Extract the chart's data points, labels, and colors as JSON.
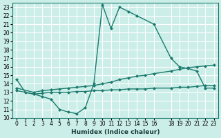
{
  "xlabel": "Humidex (Indice chaleur)",
  "ylabel": "",
  "bg_color": "#cceee8",
  "grid_color": "#ffffff",
  "line_color": "#1a7a6e",
  "x_ticks": [
    0,
    1,
    2,
    3,
    4,
    5,
    6,
    7,
    8,
    9,
    10,
    11,
    12,
    13,
    14,
    15,
    16,
    18,
    19,
    20,
    21,
    22,
    23
  ],
  "x_tick_labels": [
    "0",
    "1",
    "2",
    "3",
    "4",
    "5",
    "6",
    "7",
    "8",
    "9",
    "10",
    "11",
    "12",
    "13",
    "14",
    "15",
    "16",
    "18",
    "19",
    "20",
    "21",
    "22",
    "23"
  ],
  "y_ticks": [
    10,
    11,
    12,
    13,
    14,
    15,
    16,
    17,
    18,
    19,
    20,
    21,
    22,
    23
  ],
  "xlim": [
    -0.5,
    23.5
  ],
  "ylim": [
    10,
    23.5
  ],
  "line1_x": [
    0,
    1,
    2,
    3,
    4,
    5,
    6,
    7,
    8,
    9,
    10,
    11,
    12,
    13,
    14,
    16,
    18,
    19,
    20,
    21,
    22,
    23
  ],
  "line1_y": [
    14.5,
    13.0,
    12.8,
    12.5,
    12.2,
    11.0,
    10.7,
    10.5,
    11.2,
    14.0,
    23.3,
    20.5,
    23.0,
    22.5,
    22.0,
    21.0,
    17.0,
    16.0,
    15.8,
    15.5,
    13.5,
    13.5
  ],
  "line2_x": [
    0,
    2,
    3,
    4,
    5,
    6,
    7,
    8,
    9,
    10,
    11,
    12,
    13,
    14,
    15,
    16,
    18,
    19,
    20,
    21,
    22,
    23
  ],
  "line2_y": [
    13.5,
    13.0,
    13.2,
    13.3,
    13.4,
    13.5,
    13.6,
    13.7,
    13.8,
    14.0,
    14.2,
    14.5,
    14.7,
    14.9,
    15.0,
    15.2,
    15.5,
    15.7,
    15.9,
    16.0,
    16.1,
    16.2
  ],
  "line3_x": [
    0,
    2,
    3,
    4,
    5,
    6,
    7,
    8,
    9,
    10,
    11,
    12,
    13,
    14,
    15,
    16,
    18,
    19,
    20,
    21,
    22,
    23
  ],
  "line3_y": [
    13.2,
    12.8,
    12.9,
    13.0,
    13.0,
    13.0,
    13.1,
    13.1,
    13.2,
    13.2,
    13.3,
    13.3,
    13.4,
    13.4,
    13.4,
    13.5,
    13.5,
    13.6,
    13.6,
    13.7,
    13.8,
    13.8
  ]
}
